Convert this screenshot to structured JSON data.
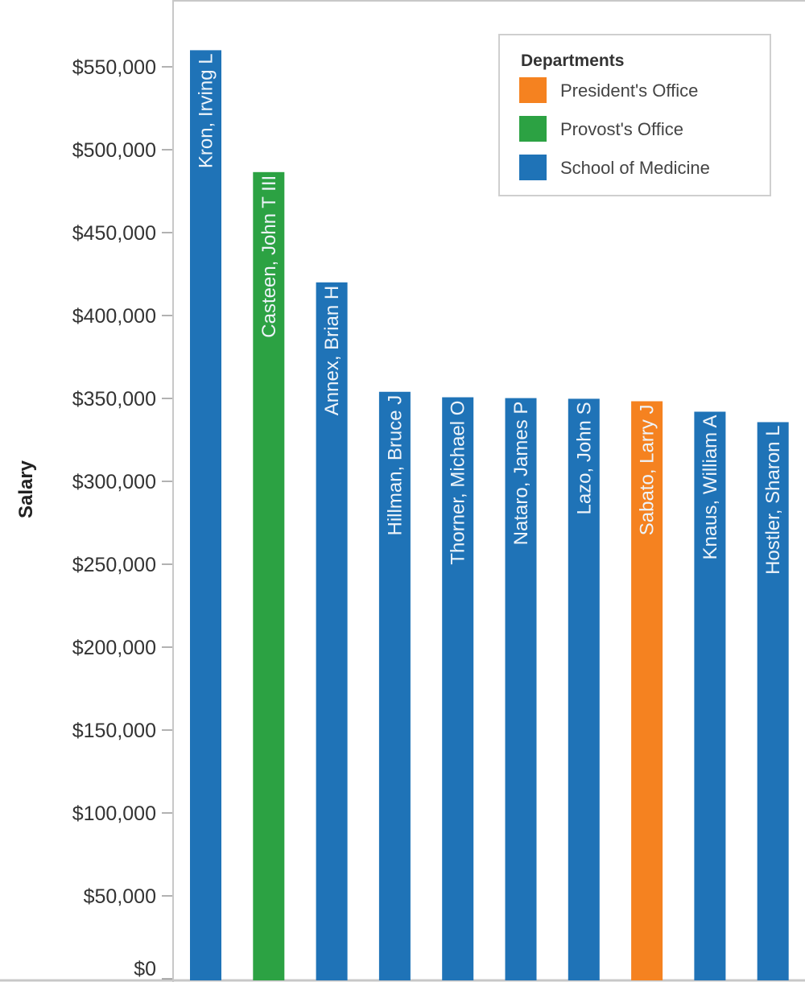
{
  "chart_data": {
    "type": "bar",
    "title": "",
    "xlabel": "",
    "ylabel": "Salary",
    "ylim": [
      0,
      550000
    ],
    "yticks": [
      0,
      50000,
      100000,
      150000,
      200000,
      250000,
      300000,
      350000,
      400000,
      450000,
      500000,
      550000
    ],
    "ytick_labels": [
      "$0",
      "$50,000",
      "$100,000",
      "$150,000",
      "$200,000",
      "$250,000",
      "$300,000",
      "$350,000",
      "$400,000",
      "$450,000",
      "$500,000",
      "$550,000"
    ],
    "categories": [
      "Kron, Irving L",
      "Casteen, John T III",
      "Annex, Brian H",
      "Hillman, Bruce J",
      "Thorner, Michael O",
      "Nataro, James P",
      "Lazo, John S",
      "Sabato, Larry J",
      "Knaus, William A",
      "Hostler, Sharon L"
    ],
    "values": [
      560000,
      486500,
      420000,
      354000,
      350700,
      350200,
      349800,
      348300,
      342000,
      335700
    ],
    "departments": [
      "School of Medicine",
      "Provost's Office",
      "School of Medicine",
      "School of Medicine",
      "School of Medicine",
      "School of Medicine",
      "School of Medicine",
      "President's Office",
      "School of Medicine",
      "School of Medicine"
    ],
    "legend": {
      "title": "Departments",
      "placement": "top-right",
      "entries": [
        {
          "label": "President's Office",
          "color": "#f58220"
        },
        {
          "label": "Provost's Office",
          "color": "#2ca243"
        },
        {
          "label": "School of Medicine",
          "color": "#1f73b7"
        }
      ]
    },
    "grid": false
  }
}
